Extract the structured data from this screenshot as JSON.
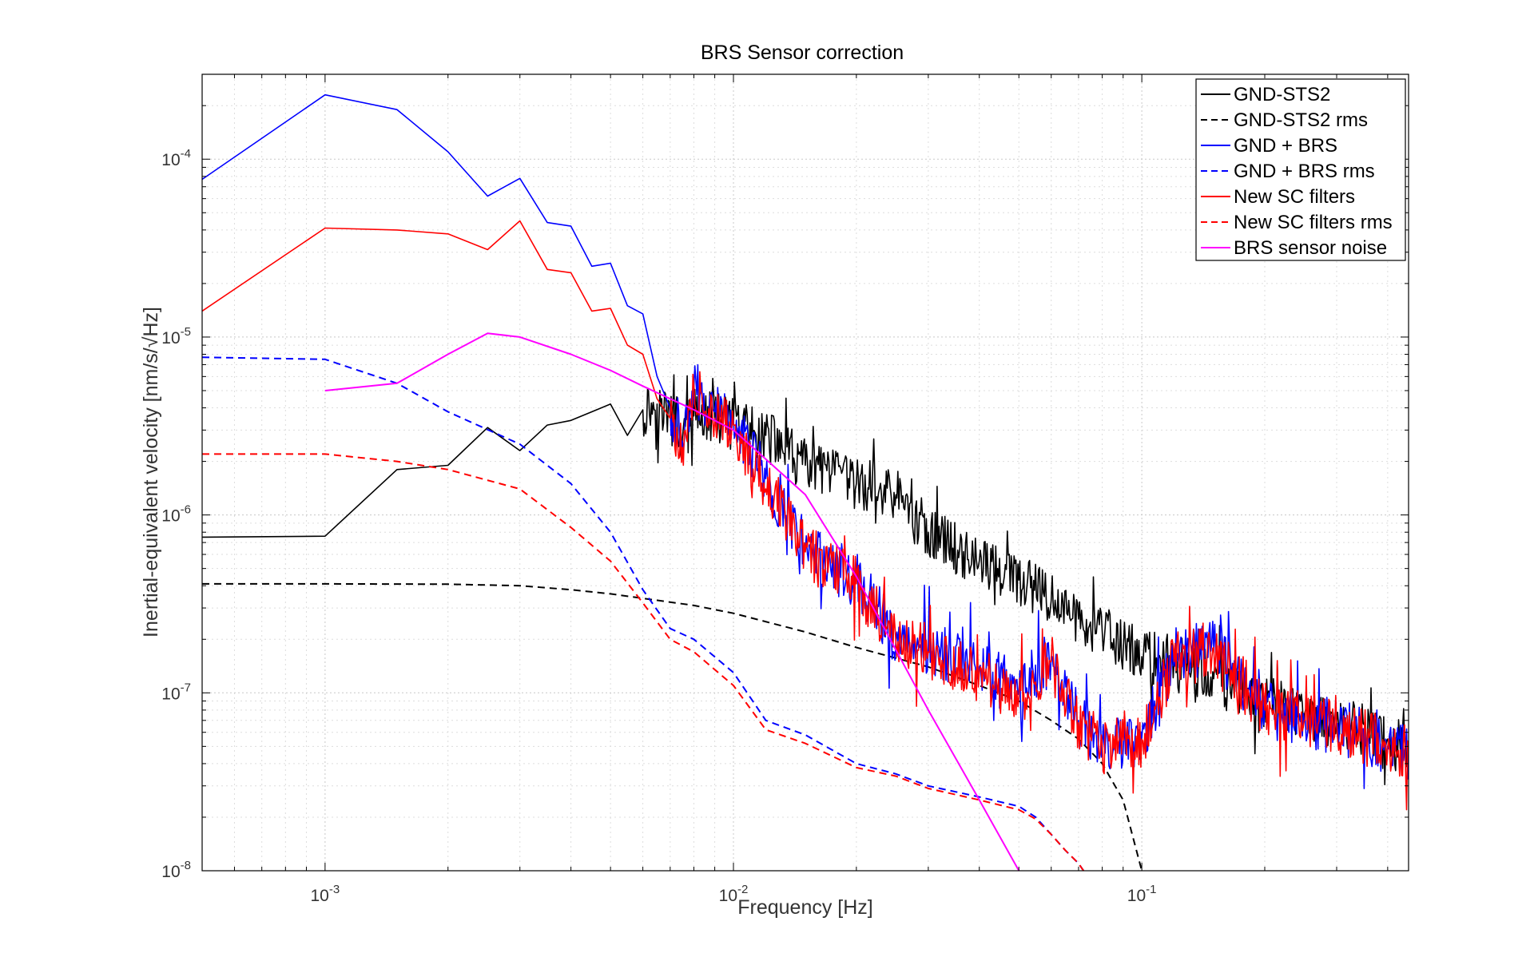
{
  "chart_data": {
    "type": "line",
    "title": "BRS Sensor correction",
    "xlabel": "Frequency [Hz]",
    "ylabel": "Inertial-equivalent velocity [nm/s/√Hz]",
    "xscale": "log",
    "yscale": "log",
    "xlim": [
      0.0005,
      0.45
    ],
    "ylim": [
      1e-08,
      0.0003
    ],
    "grid": true,
    "legend_position": "top-right",
    "x_ticks": [
      {
        "value": 0.001,
        "base": "10",
        "exp": "-3"
      },
      {
        "value": 0.01,
        "base": "10",
        "exp": "-2"
      },
      {
        "value": 0.1,
        "base": "10",
        "exp": "-1"
      }
    ],
    "y_ticks": [
      {
        "value": 1e-08,
        "base": "10",
        "exp": "-8"
      },
      {
        "value": 1e-07,
        "base": "10",
        "exp": "-7"
      },
      {
        "value": 1e-06,
        "base": "10",
        "exp": "-6"
      },
      {
        "value": 1e-05,
        "base": "10",
        "exp": "-5"
      },
      {
        "value": 0.0001,
        "base": "10",
        "exp": "-4"
      }
    ],
    "series": [
      {
        "name": "GND-STS2",
        "color": "#000000",
        "dash": "solid",
        "noise": 0.3,
        "noise_start": 0.006,
        "x": [
          0.0005,
          0.001,
          0.0015,
          0.002,
          0.0025,
          0.003,
          0.0035,
          0.004,
          0.0045,
          0.005,
          0.0055,
          0.006,
          0.0065,
          0.007,
          0.0075,
          0.008,
          0.009,
          0.01,
          0.012,
          0.015,
          0.02,
          0.025,
          0.03,
          0.04,
          0.05,
          0.06,
          0.07,
          0.08,
          0.1,
          0.12,
          0.15,
          0.2,
          0.25,
          0.3,
          0.4,
          0.45
        ],
        "y": [
          7.5e-07,
          7.6e-07,
          1.8e-06,
          1.9e-06,
          3.1e-06,
          2.3e-06,
          3.2e-06,
          3.4e-06,
          3.8e-06,
          4.2e-06,
          2.8e-06,
          3.9e-06,
          4.2e-06,
          3.5e-06,
          2.7e-06,
          3.6e-06,
          3.5e-06,
          3.2e-06,
          2.8e-06,
          1.9e-06,
          1.5e-06,
          1.3e-06,
          8e-07,
          5.5e-07,
          4.3e-07,
          3.3e-07,
          2.6e-07,
          2.2e-07,
          1.6e-07,
          1.5e-07,
          1.2e-07,
          9e-08,
          7.5e-08,
          7e-08,
          5.5e-08,
          5e-08
        ]
      },
      {
        "name": "GND-STS2 rms",
        "color": "#000000",
        "dash": "dashed",
        "x": [
          0.0005,
          0.001,
          0.002,
          0.003,
          0.004,
          0.005,
          0.006,
          0.008,
          0.01,
          0.015,
          0.02,
          0.03,
          0.04,
          0.05,
          0.06,
          0.07,
          0.08,
          0.09,
          0.1
        ],
        "y": [
          4.1e-07,
          4.1e-07,
          4.08e-07,
          4e-07,
          3.8e-07,
          3.6e-07,
          3.4e-07,
          3.1e-07,
          2.8e-07,
          2.2e-07,
          1.8e-07,
          1.4e-07,
          1.1e-07,
          9e-08,
          7e-08,
          5.5e-08,
          4e-08,
          2.5e-08,
          1e-08
        ]
      },
      {
        "name": "GND + BRS",
        "color": "#0000ff",
        "dash": "solid",
        "noise": 0.32,
        "noise_start": 0.007,
        "x": [
          0.0005,
          0.001,
          0.0015,
          0.002,
          0.0025,
          0.003,
          0.0035,
          0.004,
          0.0045,
          0.005,
          0.0055,
          0.006,
          0.0065,
          0.007,
          0.0075,
          0.008,
          0.009,
          0.01,
          0.012,
          0.015,
          0.02,
          0.025,
          0.03,
          0.04,
          0.05,
          0.06,
          0.07,
          0.08,
          0.1,
          0.12,
          0.15,
          0.2,
          0.25,
          0.3,
          0.4,
          0.45
        ],
        "y": [
          7.7e-05,
          0.00023,
          0.00019,
          0.00011,
          6.2e-05,
          7.8e-05,
          4.4e-05,
          4.2e-05,
          2.5e-05,
          2.6e-05,
          1.5e-05,
          1.35e-05,
          6e-06,
          4e-06,
          2.6e-06,
          5.2e-06,
          3.8e-06,
          3.4e-06,
          1.6e-06,
          6.5e-07,
          4.3e-07,
          2e-07,
          1.8e-07,
          1.4e-07,
          1e-07,
          1.6e-07,
          7e-08,
          5e-08,
          5.5e-08,
          1.6e-07,
          1.8e-07,
          8e-08,
          7e-08,
          6.5e-08,
          5e-08,
          4.5e-08
        ]
      },
      {
        "name": "GND + BRS rms",
        "color": "#0000ff",
        "dash": "dashed",
        "x": [
          0.0005,
          0.001,
          0.0015,
          0.002,
          0.003,
          0.004,
          0.005,
          0.006,
          0.007,
          0.008,
          0.01,
          0.012,
          0.015,
          0.02,
          0.025,
          0.03,
          0.04,
          0.05,
          0.055,
          0.06,
          0.065,
          0.07,
          0.072
        ],
        "y": [
          7.7e-06,
          7.5e-06,
          5.5e-06,
          3.8e-06,
          2.5e-06,
          1.5e-06,
          8e-07,
          3.8e-07,
          2.3e-07,
          2e-07,
          1.3e-07,
          7e-08,
          5.8e-08,
          4e-08,
          3.5e-08,
          3e-08,
          2.6e-08,
          2.3e-08,
          2e-08,
          1.6e-08,
          1.3e-08,
          1.1e-08,
          1e-08
        ]
      },
      {
        "name": "New SC filters",
        "color": "#ff0000",
        "dash": "solid",
        "noise": 0.32,
        "noise_start": 0.007,
        "x": [
          0.0005,
          0.001,
          0.0015,
          0.002,
          0.0025,
          0.003,
          0.0035,
          0.004,
          0.0045,
          0.005,
          0.0055,
          0.006,
          0.0065,
          0.007,
          0.0075,
          0.008,
          0.009,
          0.01,
          0.012,
          0.015,
          0.02,
          0.025,
          0.03,
          0.04,
          0.05,
          0.06,
          0.07,
          0.08,
          0.1,
          0.12,
          0.15,
          0.2,
          0.25,
          0.3,
          0.4,
          0.45
        ],
        "y": [
          1.4e-05,
          4.1e-05,
          4e-05,
          3.8e-05,
          3.1e-05,
          4.5e-05,
          2.4e-05,
          2.3e-05,
          1.4e-05,
          1.45e-05,
          9e-06,
          8e-06,
          4.5e-06,
          3.5e-06,
          2.4e-06,
          5.3e-06,
          3.5e-06,
          3.2e-06,
          1.4e-06,
          6.2e-07,
          4.1e-07,
          1.9e-07,
          1.7e-07,
          1.3e-07,
          9.5e-08,
          1.5e-07,
          6.8e-08,
          5e-08,
          5.5e-08,
          1.5e-07,
          1.8e-07,
          8e-08,
          7e-08,
          6.5e-08,
          5e-08,
          4.5e-08
        ]
      },
      {
        "name": "New SC filters rms",
        "color": "#ff0000",
        "dash": "dashed",
        "x": [
          0.0005,
          0.001,
          0.0015,
          0.002,
          0.003,
          0.004,
          0.005,
          0.006,
          0.007,
          0.008,
          0.01,
          0.012,
          0.015,
          0.02,
          0.025,
          0.03,
          0.04,
          0.05,
          0.055,
          0.06,
          0.065,
          0.07,
          0.072
        ],
        "y": [
          2.2e-06,
          2.2e-06,
          2e-06,
          1.8e-06,
          1.4e-06,
          8.5e-07,
          5.5e-07,
          3.2e-07,
          2e-07,
          1.7e-07,
          1.1e-07,
          6.2e-08,
          5.2e-08,
          3.8e-08,
          3.4e-08,
          2.9e-08,
          2.5e-08,
          2.2e-08,
          1.95e-08,
          1.6e-08,
          1.3e-08,
          1.1e-08,
          1e-08
        ]
      },
      {
        "name": "BRS sensor noise",
        "color": "#ff00ff",
        "dash": "solid",
        "x": [
          0.001,
          0.0015,
          0.002,
          0.0025,
          0.003,
          0.004,
          0.005,
          0.006,
          0.007,
          0.008,
          0.01,
          0.015,
          0.02,
          0.03,
          0.04,
          0.05
        ],
        "y": [
          5e-06,
          5.5e-06,
          8e-06,
          1.05e-05,
          1e-05,
          8e-06,
          6.5e-06,
          5.3e-06,
          4.5e-06,
          3.9e-06,
          3e-06,
          1.3e-06,
          4.5e-07,
          8e-08,
          2.5e-08,
          1e-08
        ]
      }
    ]
  }
}
